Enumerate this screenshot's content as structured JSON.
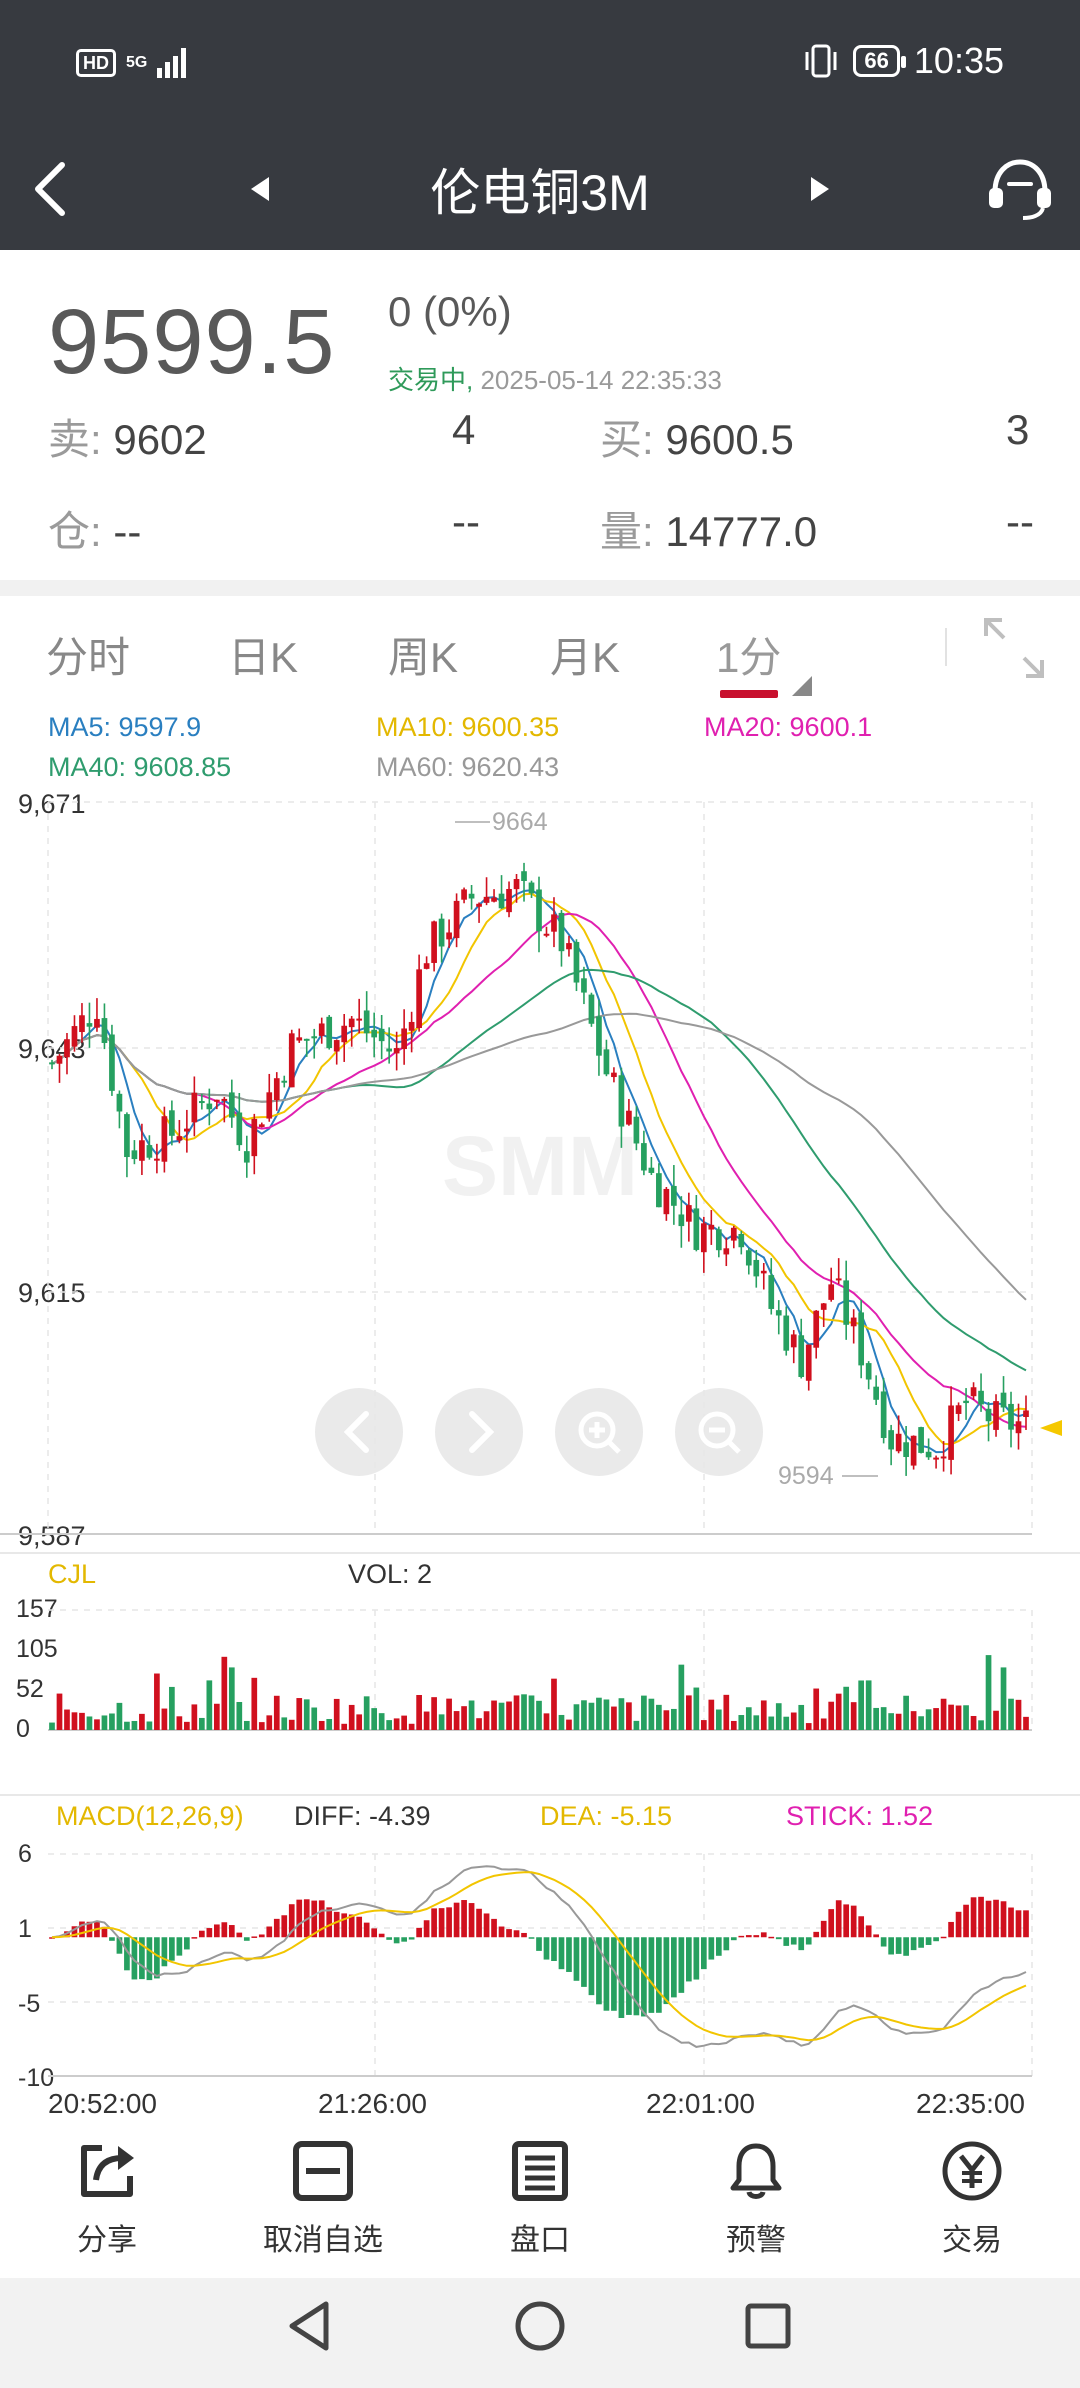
{
  "status": {
    "network_left": "HD",
    "network_type": "5G",
    "battery": "66",
    "time": "10:35"
  },
  "header": {
    "title": "伦电铜3M"
  },
  "quote": {
    "price": "9599.5",
    "change": "0  (0%)",
    "trade_status": "交易中,",
    "datetime": "2025-05-14 22:35:33",
    "sell_label": "卖:",
    "sell_price": "9602",
    "sell_qty": "4",
    "buy_label": "买:",
    "buy_price": "9600.5",
    "buy_qty": "3",
    "position_label": "仓:",
    "position_value": "--",
    "position_extra": "--",
    "volume_label": "量:",
    "volume_value": "14777.0",
    "volume_extra": "--"
  },
  "tabs": [
    "分时",
    "日K",
    "周K",
    "月K",
    "1分"
  ],
  "ma": {
    "ma5": "MA5: 9597.9",
    "ma10": "MA10: 9600.35",
    "ma20": "MA20: 9600.1",
    "ma40": "MA40: 9608.85",
    "ma60": "MA60: 9620.43"
  },
  "colors": {
    "up": "#d0101e",
    "down": "#26a060",
    "ma5": "#2a7fc0",
    "ma10": "#f2c500",
    "ma20": "#e020b0",
    "ma40": "#2f9c6e",
    "ma60": "#999999",
    "dark": "#373a40"
  },
  "chart_data": {
    "type": "candlestick",
    "price_axis": {
      "ticks": [
        "9,671",
        "9,643",
        "9,615",
        "9,587"
      ],
      "ylim": [
        9587,
        9671
      ]
    },
    "high_annotation": "9664",
    "low_annotation": "9594",
    "last_price": 9599.5,
    "watermark": "SMM",
    "x_labels": [
      "20:52:00",
      "21:26:00",
      "22:01:00",
      "22:35:00"
    ],
    "volume": {
      "label": "CJL",
      "value_label": "VOL: 2",
      "ticks": [
        "157",
        "105",
        "52",
        "0"
      ],
      "ylim": [
        0,
        157
      ]
    },
    "macd": {
      "label": "MACD(12,26,9)",
      "diff": "DIFF: -4.39",
      "dea": "DEA: -5.15",
      "stick": "STICK: 1.52",
      "ticks": [
        "6",
        "1",
        "-5",
        "-10"
      ],
      "ylim": [
        -10,
        6
      ]
    }
  },
  "toolbar": {
    "share": "分享",
    "remove": "取消自选",
    "orderbook": "盘口",
    "alert": "预警",
    "trade": "交易"
  }
}
